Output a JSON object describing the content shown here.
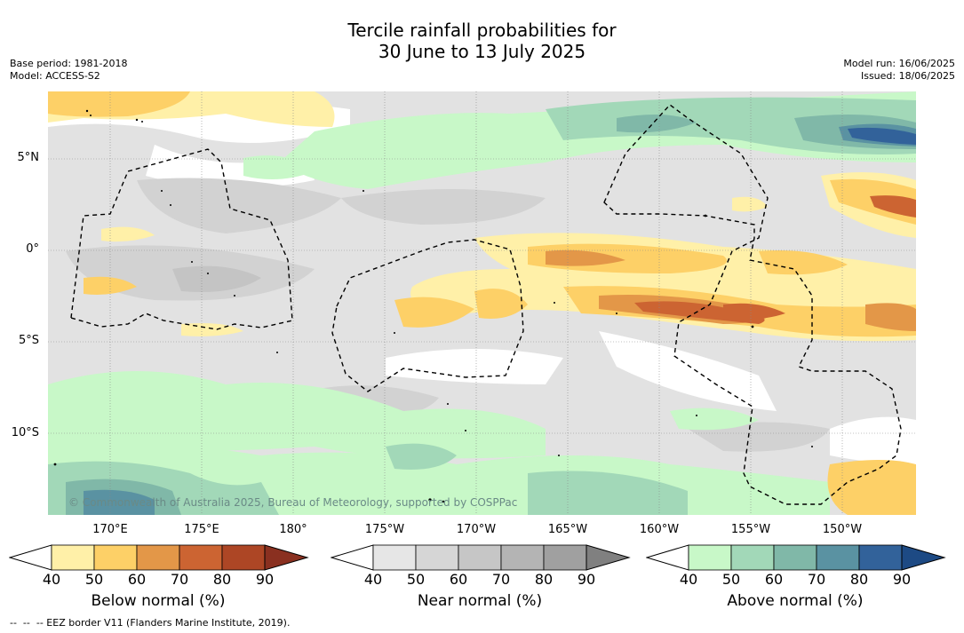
{
  "title_line1": "Tercile rainfall probabilities for",
  "title_line2": "30 June to 13 July 2025",
  "base_period": "Base period: 1981-2018",
  "model": "Model: ACCESS-S2",
  "model_run": "Model run: 16/06/2025",
  "issued": "Issued: 18/06/2025",
  "copyright": "© Commonwealth of Australia 2025, Bureau of Meteorology, supported by COSPPac",
  "footnote": "--  --  -- EEZ border V11 (Flanders Marine Institute, 2019).",
  "lon_ticks": [
    "170°E",
    "175°E",
    "180°",
    "175°W",
    "170°W",
    "165°W",
    "160°W",
    "155°W",
    "150°W"
  ],
  "lat_ticks": [
    "5°N",
    "0°",
    "5°S",
    "10°S"
  ],
  "colorbars": [
    {
      "name": "Below normal (%)",
      "ticks": [
        "40",
        "50",
        "60",
        "70",
        "80",
        "90"
      ],
      "colors": [
        "#fff0a8",
        "#fdd067",
        "#e39748",
        "#cc6432",
        "#ad4625",
        "#8a3020"
      ]
    },
    {
      "name": "Near normal (%)",
      "ticks": [
        "40",
        "50",
        "60",
        "70",
        "80",
        "90"
      ],
      "colors": [
        "#e6e6e6",
        "#d6d6d6",
        "#c6c6c6",
        "#b4b4b4",
        "#a0a0a0",
        "#808080"
      ]
    },
    {
      "name": "Above normal (%)",
      "ticks": [
        "40",
        "50",
        "60",
        "70",
        "80",
        "90"
      ],
      "colors": [
        "#c8f8c8",
        "#a2d8b8",
        "#80b8a8",
        "#5a92a2",
        "#32629a",
        "#1d4a84"
      ]
    }
  ],
  "colors": {
    "near40": "#e2e2e2",
    "near50": "#d2d2d2",
    "near60": "#c4c4c4",
    "below40": "#fff0a8",
    "below50": "#fdd067",
    "below60": "#e39748",
    "below70": "#cc6432",
    "above40": "#c8f8c8",
    "above50": "#a2d8b8",
    "above60": "#80b8a8",
    "above70": "#5a92a2",
    "above80": "#32629a"
  }
}
